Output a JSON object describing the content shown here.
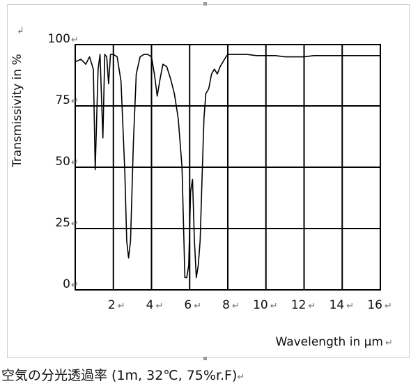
{
  "chart_data": {
    "type": "line",
    "title": "",
    "xlabel": "Wavelength in  μm",
    "ylabel": "Transmissivity in %",
    "xlim": [
      0,
      16
    ],
    "ylim": [
      0,
      100
    ],
    "x_ticks": [
      2,
      4,
      6,
      8,
      10,
      12,
      14,
      16
    ],
    "x_tick_labels": [
      "2",
      "4",
      "6",
      "8",
      "10",
      "12",
      "14",
      "16"
    ],
    "y_ticks": [
      0,
      25,
      50,
      75,
      100
    ],
    "y_tick_labels": [
      "0",
      "25",
      "50",
      "75",
      "100"
    ],
    "grid": true,
    "legend": "none",
    "line_color": "#000000",
    "series": [
      {
        "x": [
          0.0,
          0.3,
          0.55,
          0.75,
          0.95,
          1.05,
          1.2,
          1.3,
          1.45,
          1.55,
          1.65,
          1.75,
          1.85,
          2.0,
          2.2,
          2.4,
          2.6,
          2.7,
          2.8,
          2.9,
          3.05,
          3.2,
          3.4,
          3.6,
          3.8,
          4.0,
          4.15,
          4.3,
          4.45,
          4.6,
          4.8,
          5.0,
          5.2,
          5.4,
          5.6,
          5.75,
          5.85,
          5.95,
          6.05,
          6.15,
          6.25,
          6.35,
          6.45,
          6.55,
          6.65,
          6.75,
          6.85,
          7.0,
          7.15,
          7.3,
          7.45,
          7.6,
          7.75,
          7.9,
          8.0,
          8.5,
          9.0,
          9.5,
          10.0,
          10.5,
          11.0,
          11.5,
          12.0,
          12.5,
          13.0,
          13.5,
          14.0,
          14.5,
          15.0,
          15.5,
          16.0
        ],
        "y": [
          93,
          94,
          92,
          95,
          90,
          49,
          90,
          96,
          62,
          96,
          95,
          84,
          96,
          96,
          95,
          85,
          48,
          20,
          13,
          20,
          60,
          88,
          95,
          96,
          96,
          95,
          88,
          79,
          86,
          92,
          91,
          86,
          80,
          70,
          50,
          5,
          5,
          10,
          40,
          45,
          20,
          5,
          10,
          20,
          45,
          70,
          80,
          82,
          88,
          90,
          88,
          91,
          93,
          95,
          96,
          96,
          96,
          95.5,
          95.5,
          95.5,
          95,
          95,
          95,
          95.5,
          95.5,
          95.5,
          95.5,
          95.5,
          95.5,
          95.5,
          95.5
        ]
      }
    ]
  },
  "marks": {
    "return": "↵",
    "return_top": "↲"
  },
  "caption": {
    "text": "空気の分光透過率 (1m, 32℃, 75%r.F)"
  }
}
